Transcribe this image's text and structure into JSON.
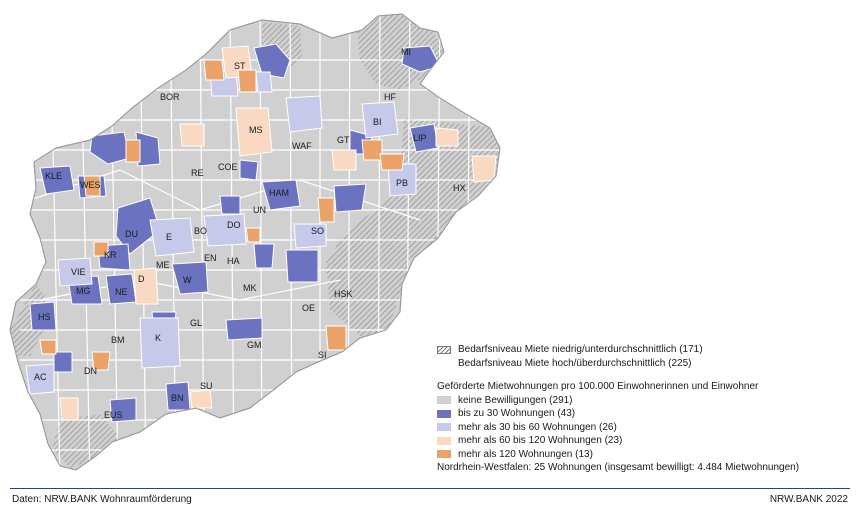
{
  "colors": {
    "none": "#d0d0d0",
    "upto30": "#6b72bf",
    "30to60": "#c7c9ea",
    "60to120": "#f9d9c1",
    "over120": "#eaa268",
    "border": "#ffffff"
  },
  "city_labels": [
    "MI",
    "ST",
    "BOR",
    "HF",
    "BI",
    "MS",
    "LIP",
    "GT",
    "WAF",
    "KLE",
    "COE",
    "PB",
    "RE",
    "HX",
    "WES",
    "HAM",
    "UN",
    "DO",
    "DU",
    "BO",
    "E",
    "SO",
    "EN",
    "HA",
    "KR",
    "ME",
    "D",
    "VIE",
    "W",
    "MK",
    "HSK",
    "MG",
    "NE",
    "OE",
    "HS",
    "GL",
    "BM",
    "K",
    "SI",
    "GM",
    "AC",
    "DN",
    "SU",
    "BN",
    "EUS"
  ],
  "legend": {
    "hatch_low": "Bedarfsniveau Miete niedrig/unterdurchschnittlich (171)",
    "hatch_high": "Bedarfsniveau Miete hoch/überdurchschnittlich (225)",
    "heading": "Geförderte Mietwohnungen pro 100.000 Einwohnerinnen und Einwohner",
    "items": [
      {
        "label": "keine Bewilligungen (291)",
        "color": "#d0d0d0"
      },
      {
        "label": "bis zu 30 Wohnungen (43)",
        "color": "#6b72bf"
      },
      {
        "label": "mehr als 30 bis 60 Wohnungen (26)",
        "color": "#c7c9ea"
      },
      {
        "label": "mehr als 60 bis 120 Wohnungen (23)",
        "color": "#f9d9c1"
      },
      {
        "label": "mehr als 120 Wohnungen (13)",
        "color": "#eaa268"
      }
    ],
    "summary": "Nordrhein-Westfalen: 25 Wohnungen (insgesamt bewilligt: 4.484 Mietwohnungen)"
  },
  "footer": {
    "source": "Daten: NRW.BANK Wohnraumförderung",
    "copyright": "NRW.BANK 2022"
  }
}
